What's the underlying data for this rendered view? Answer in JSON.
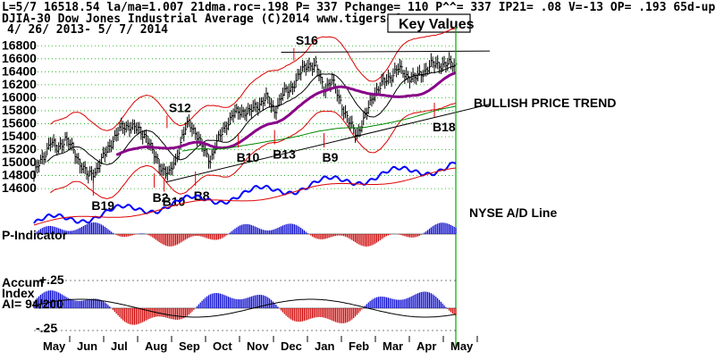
{
  "header": {
    "line1": "L=5/7  16518.54  la/ma=1.007 21dma.roc=.198 P=  337 Pchange=  110 P^^= 337 IP21= .08 V=-13 OP= .193 65d-up-pct= .074",
    "line2": "DJIA-30  Dow Jones Industrial Average  (C)2014 www.tigersoft.com",
    "line3": "4/ 26/ 2013-  5/ 7/ 2014"
  },
  "key_values_label": "Key Values",
  "labels": {
    "bullish": "BULLISH PRICE TREND",
    "nyse": "NYSE A/D Line",
    "p_indicator": "P-Indicator",
    "accum_title": "Accum",
    "accum_index": "Index",
    "accum_ai": "AI= 94/200",
    "accum_plus": "+.25",
    "accum_minus": "-.25"
  },
  "chart_data": {
    "type": "ohlc",
    "title": "DJIA-30 Dow Jones Industrial Average",
    "date_range": "4/ 26/ 2013- 5/ 7/ 2014",
    "last_close": 16518.54,
    "y_ticks": [
      16800,
      16600,
      16400,
      16200,
      16000,
      15800,
      15600,
      15400,
      15200,
      15000,
      14800,
      14600
    ],
    "ylim": [
      14450,
      16900
    ],
    "months": [
      "May",
      "Jun",
      "Jul",
      "Aug",
      "Sep",
      "Oct",
      "Nov",
      "Dec",
      "Jan",
      "Feb",
      "Mar",
      "Apr",
      "May"
    ],
    "closes": [
      [
        0,
        14820
      ],
      [
        6,
        15100
      ],
      [
        10,
        15330
      ],
      [
        14,
        15200
      ],
      [
        19,
        15380
      ],
      [
        24,
        15180
      ],
      [
        28,
        15000
      ],
      [
        33,
        14780
      ],
      [
        38,
        14900
      ],
      [
        43,
        15120
      ],
      [
        48,
        15360
      ],
      [
        53,
        15530
      ],
      [
        58,
        15580
      ],
      [
        63,
        15500
      ],
      [
        68,
        15420
      ],
      [
        73,
        15100
      ],
      [
        78,
        14910
      ],
      [
        82,
        14810
      ],
      [
        86,
        15050
      ],
      [
        90,
        15390
      ],
      [
        94,
        15620
      ],
      [
        98,
        15480
      ],
      [
        103,
        15190
      ],
      [
        107,
        15050
      ],
      [
        111,
        15300
      ],
      [
        116,
        15560
      ],
      [
        121,
        15740
      ],
      [
        126,
        15800
      ],
      [
        131,
        15780
      ],
      [
        136,
        15890
      ],
      [
        141,
        16000
      ],
      [
        146,
        15800
      ],
      [
        151,
        16050
      ],
      [
        156,
        16150
      ],
      [
        161,
        16350
      ],
      [
        166,
        16520
      ],
      [
        171,
        16480
      ],
      [
        176,
        16150
      ],
      [
        181,
        16250
      ],
      [
        186,
        15950
      ],
      [
        191,
        15620
      ],
      [
        196,
        15440
      ],
      [
        201,
        15700
      ],
      [
        206,
        16050
      ],
      [
        211,
        16200
      ],
      [
        216,
        16320
      ],
      [
        221,
        16450
      ],
      [
        226,
        16350
      ],
      [
        231,
        16280
      ],
      [
        236,
        16400
      ],
      [
        241,
        16500
      ],
      [
        246,
        16520
      ],
      [
        251,
        16510
      ],
      [
        256,
        16518.54
      ]
    ],
    "signals": [
      {
        "label": "S16",
        "type": "sell",
        "x": 161,
        "y": 16820
      },
      {
        "label": "S12",
        "type": "sell",
        "x": 84,
        "y": 15780
      },
      {
        "label": "B19",
        "type": "buy",
        "x": 36,
        "y": 14410
      },
      {
        "label": "B2",
        "type": "buy",
        "x": 73,
        "y": 14530
      },
      {
        "label": "B10",
        "type": "buy",
        "x": 79,
        "y": 14470
      },
      {
        "label": "B8",
        "type": "buy",
        "x": 98,
        "y": 14560
      },
      {
        "label": "B10",
        "type": "buy",
        "x": 124,
        "y": 15150
      },
      {
        "label": "B13",
        "type": "buy",
        "x": 146,
        "y": 15200
      },
      {
        "label": "B9",
        "type": "buy",
        "x": 176,
        "y": 15150
      },
      {
        "label": "B18",
        "type": "buy",
        "x": 243,
        "y": 15620
      }
    ],
    "panels": [
      "Price with bands and moving averages",
      "NYSE A/D Line",
      "P-Indicator",
      "Accumulation Index"
    ],
    "legend": [
      "BULLISH PRICE TREND",
      "NYSE A/D Line"
    ]
  },
  "colors": {
    "band": "#dd0000",
    "ma_purple": "#880088",
    "ma_green": "#008800",
    "ad_line": "#0000ff",
    "pos_hist": "#0000cc",
    "neg_hist": "#cc0000",
    "cursor": "#00aa00",
    "grid": "#00aa00"
  }
}
